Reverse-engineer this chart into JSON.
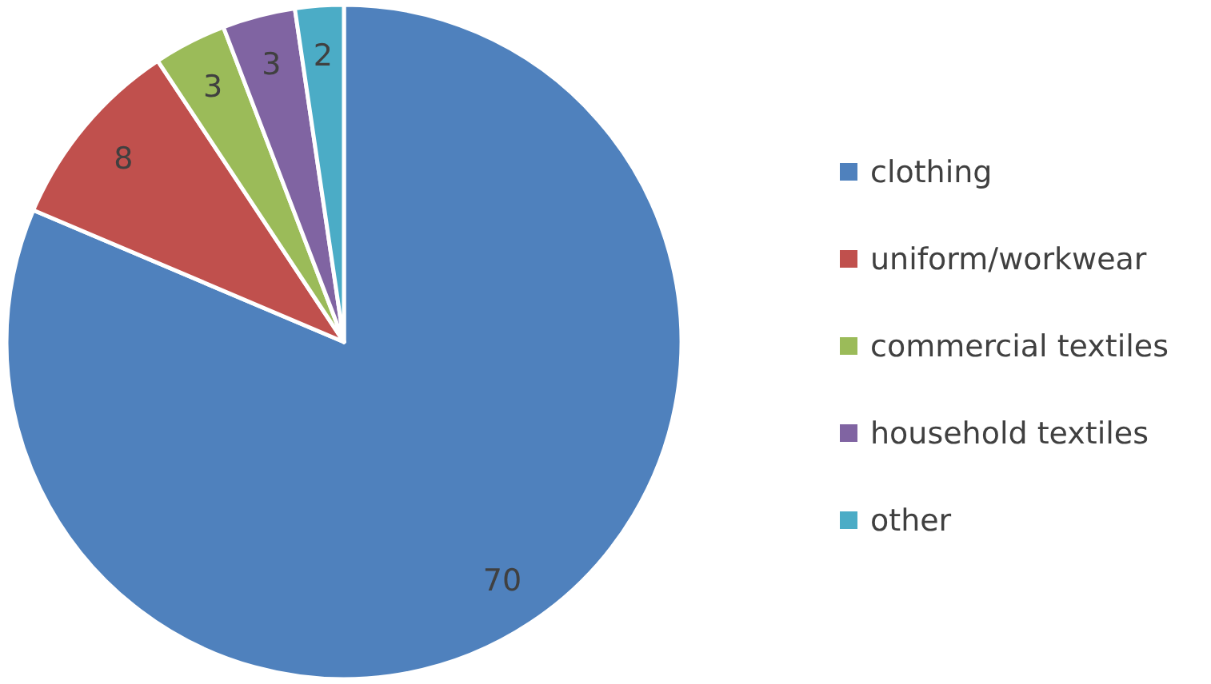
{
  "chart_data": {
    "type": "pie",
    "categories": [
      "clothing",
      "uniform/workwear",
      "commercial textiles",
      "household textiles",
      "other"
    ],
    "values": [
      70,
      8,
      3,
      3,
      2
    ],
    "colors": [
      "#4f81bd",
      "#c0504d",
      "#9bbb59",
      "#8064a2",
      "#4bacc6"
    ],
    "data_labels": true,
    "legend": "right"
  }
}
